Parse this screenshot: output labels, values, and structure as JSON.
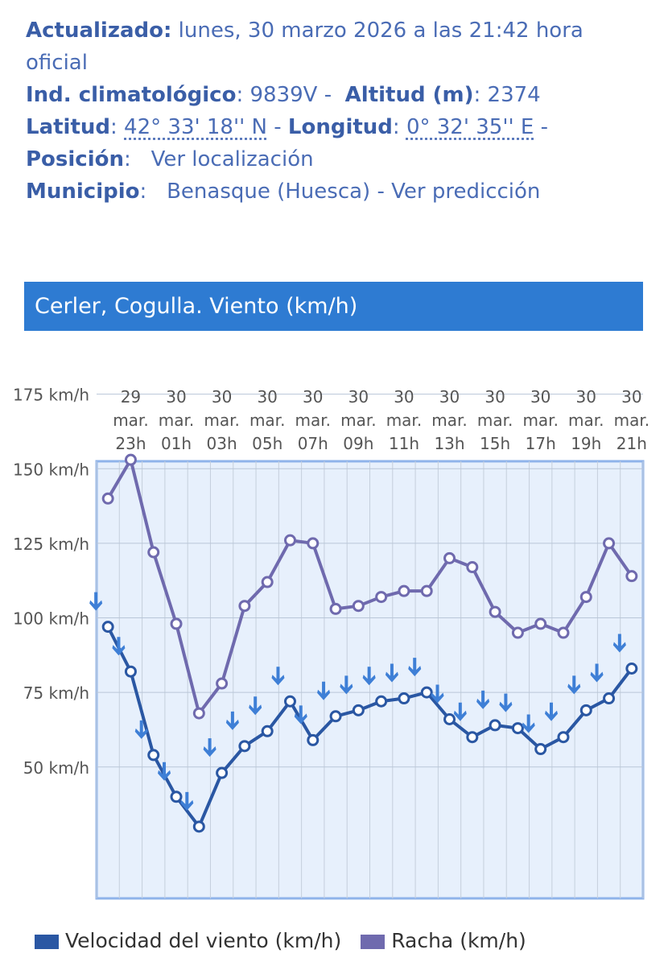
{
  "station": {
    "updated_label": "Actualizado:",
    "updated_value": "lunes, 30 marzo 2026 a las 21:42 hora",
    "updated_value_cont": "oficial",
    "ind_label": "Ind. climatológico",
    "ind_value": "9839V",
    "alt_label": "Altitud (m)",
    "alt_value": "2374",
    "lat_label": "Latitud",
    "lat_value": "42° 33' 18'' N",
    "lon_label": "Longitud",
    "lon_value": "0° 32' 35'' E",
    "pos_label": "Posición",
    "pos_link": "Ver localización",
    "mun_label": "Municipio",
    "mun_value": "Benasque (Huesca)",
    "mun_link": "Ver predicción"
  },
  "banner_title": "Cerler, Cogulla. Viento (km/h)",
  "colors": {
    "speed": "#2a57a3",
    "gust": "#6f6aae",
    "arrow": "#3e7fd6",
    "banner": "#2e7bd2",
    "plot_bg": "#e7f0fc"
  },
  "chart_data": {
    "type": "line",
    "x_tick_labels": [
      [
        "29",
        "mar.",
        "23h"
      ],
      [
        "30",
        "mar.",
        "01h"
      ],
      [
        "30",
        "mar.",
        "03h"
      ],
      [
        "30",
        "mar.",
        "05h"
      ],
      [
        "30",
        "mar.",
        "07h"
      ],
      [
        "30",
        "mar.",
        "09h"
      ],
      [
        "30",
        "mar.",
        "11h"
      ],
      [
        "30",
        "mar.",
        "13h"
      ],
      [
        "30",
        "mar.",
        "15h"
      ],
      [
        "30",
        "mar.",
        "17h"
      ],
      [
        "30",
        "mar.",
        "19h"
      ],
      [
        "30",
        "mar.",
        "21h"
      ]
    ],
    "y_tick_labels": [
      "175 km/h",
      "150 km/h",
      "125 km/h",
      "100 km/h",
      "75 km/h",
      "50 km/h"
    ],
    "y_ticks": [
      175,
      150,
      125,
      100,
      75,
      50
    ],
    "ylim": [
      28,
      175
    ],
    "hours_count": 24,
    "series": [
      {
        "name": "Velocidad del viento (km/h)",
        "values": [
          97,
          82,
          54,
          40,
          30,
          48,
          57,
          62,
          72,
          59,
          67,
          69,
          72,
          73,
          75,
          66,
          60,
          64,
          63,
          56,
          60,
          69,
          73,
          83
        ]
      },
      {
        "name": "Racha (km/h)",
        "values": [
          140,
          153,
          122,
          98,
          68,
          78,
          104,
          112,
          126,
          125,
          103,
          104,
          107,
          109,
          109,
          120,
          117,
          102,
          95,
          98,
          95,
          107,
          125,
          114
        ]
      }
    ],
    "wind_direction": "N",
    "legend_position": "bottom",
    "grid": true
  }
}
